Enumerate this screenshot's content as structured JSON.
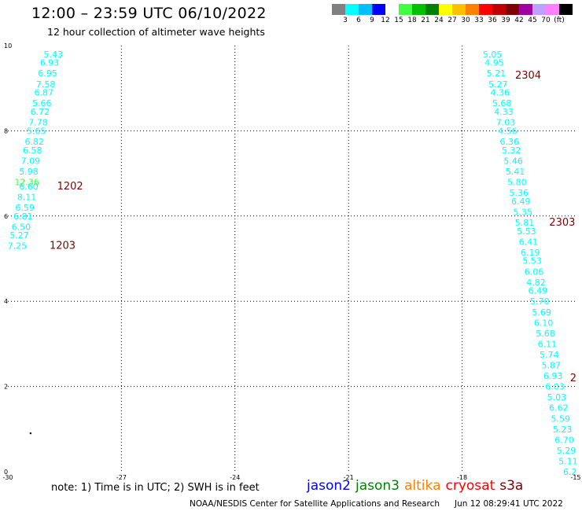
{
  "header": {
    "title": "12:00 – 23:59 UTC 06/10/2022",
    "subtitle": "12 hour collection of altimeter wave heights"
  },
  "legend": {
    "colors": [
      "#808080",
      "#00ffff",
      "#00bfff",
      "#0000ff",
      "#ffffff",
      "#40ff40",
      "#00c000",
      "#008000",
      "#ffff00",
      "#ffc000",
      "#ff8000",
      "#ff0000",
      "#c00000",
      "#800000",
      "#a000a0",
      "#c0a0ff",
      "#ff80ff",
      "#000000"
    ],
    "ticks": [
      "3",
      "6",
      "9",
      "12",
      "15",
      "18",
      "21",
      "24",
      "27",
      "30",
      "33",
      "36",
      "39",
      "42",
      "45",
      "70",
      "(ft)"
    ]
  },
  "axes": {
    "x_ticks": [
      "-30",
      "-27",
      "-24",
      "-21",
      "-18",
      "-15"
    ],
    "y_ticks": [
      "0",
      "2",
      "4",
      "6",
      "8",
      "10"
    ]
  },
  "chart_data": {
    "type": "map",
    "xlim": [
      -30,
      -15
    ],
    "ylim": [
      0,
      10
    ],
    "grid": true,
    "tracks": [
      {
        "points": [
          {
            "lon": -28.8,
            "lat": 9.8,
            "v": "5.43",
            "color": "#00ffff"
          },
          {
            "lon": -28.9,
            "lat": 9.6,
            "v": "6.93",
            "color": "#00ffff"
          },
          {
            "lon": -28.95,
            "lat": 9.35,
            "v": "6.95",
            "color": "#00ffff"
          },
          {
            "lon": -29.0,
            "lat": 9.1,
            "v": "7.58",
            "color": "#00ffff"
          },
          {
            "lon": -29.05,
            "lat": 8.9,
            "v": "6.87",
            "color": "#00ffff"
          },
          {
            "lon": -29.1,
            "lat": 8.65,
            "v": "5.66",
            "color": "#00ffff"
          },
          {
            "lon": -29.15,
            "lat": 8.45,
            "v": "6.72",
            "color": "#00ffff"
          },
          {
            "lon": -29.2,
            "lat": 8.2,
            "v": "7.78",
            "color": "#00ffff"
          },
          {
            "lon": -29.25,
            "lat": 8.0,
            "v": "5.65",
            "color": "#00ffff"
          },
          {
            "lon": -29.3,
            "lat": 7.75,
            "v": "6.82",
            "color": "#00ffff"
          },
          {
            "lon": -29.35,
            "lat": 7.55,
            "v": "6.58",
            "color": "#00ffff"
          },
          {
            "lon": -29.4,
            "lat": 7.3,
            "v": "7.09",
            "color": "#00ffff"
          },
          {
            "lon": -29.45,
            "lat": 7.05,
            "v": "5.98",
            "color": "#00ffff"
          },
          {
            "lon": -29.5,
            "lat": 6.8,
            "v": "12.36",
            "color": "#40ff40"
          },
          {
            "lon": -29.45,
            "lat": 6.7,
            "v": "6.60",
            "color": "#00ffff"
          },
          {
            "lon": -29.5,
            "lat": 6.45,
            "v": "8.11",
            "color": "#00ffff"
          },
          {
            "lon": -29.55,
            "lat": 6.2,
            "v": "6.59",
            "color": "#00ffff"
          },
          {
            "lon": -29.6,
            "lat": 6.0,
            "v": "6.81",
            "color": "#00ffff"
          },
          {
            "lon": -29.65,
            "lat": 5.75,
            "v": "6.50",
            "color": "#00ffff"
          },
          {
            "lon": -29.7,
            "lat": 5.55,
            "v": "5.27",
            "color": "#00ffff"
          },
          {
            "lon": -29.75,
            "lat": 5.3,
            "v": "7.25",
            "color": "#00ffff"
          }
        ]
      },
      {
        "points": [
          {
            "lon": -17.2,
            "lat": 9.8,
            "v": "5.05",
            "color": "#00ffff"
          },
          {
            "lon": -17.15,
            "lat": 9.6,
            "v": "4.95",
            "color": "#00ffff"
          },
          {
            "lon": -17.1,
            "lat": 9.35,
            "v": "5.21",
            "color": "#00ffff"
          },
          {
            "lon": -17.05,
            "lat": 9.1,
            "v": "5.27",
            "color": "#00ffff"
          },
          {
            "lon": -17.0,
            "lat": 8.9,
            "v": "4.36",
            "color": "#00ffff"
          },
          {
            "lon": -16.95,
            "lat": 8.65,
            "v": "5.68",
            "color": "#00ffff"
          },
          {
            "lon": -16.9,
            "lat": 8.45,
            "v": "4.33",
            "color": "#00ffff"
          },
          {
            "lon": -16.85,
            "lat": 8.2,
            "v": "7.03",
            "color": "#00ffff"
          },
          {
            "lon": -16.8,
            "lat": 8.0,
            "v": "4.56",
            "color": "#00ffff"
          },
          {
            "lon": -16.75,
            "lat": 7.75,
            "v": "6.36",
            "color": "#00ffff"
          },
          {
            "lon": -16.7,
            "lat": 7.55,
            "v": "5.32",
            "color": "#00ffff"
          },
          {
            "lon": -16.65,
            "lat": 7.3,
            "v": "5.46",
            "color": "#00ffff"
          },
          {
            "lon": -16.6,
            "lat": 7.05,
            "v": "5.41",
            "color": "#00ffff"
          },
          {
            "lon": -16.55,
            "lat": 6.8,
            "v": "5.80",
            "color": "#00ffff"
          },
          {
            "lon": -16.5,
            "lat": 6.55,
            "v": "5.36",
            "color": "#00ffff"
          },
          {
            "lon": -16.45,
            "lat": 6.35,
            "v": "6.49",
            "color": "#00ffff"
          },
          {
            "lon": -16.4,
            "lat": 6.1,
            "v": "5.35",
            "color": "#00ffff"
          },
          {
            "lon": -16.35,
            "lat": 5.85,
            "v": "5.81",
            "color": "#00ffff"
          },
          {
            "lon": -16.3,
            "lat": 5.65,
            "v": "5.53",
            "color": "#00ffff"
          },
          {
            "lon": -16.25,
            "lat": 5.4,
            "v": "6.41",
            "color": "#00ffff"
          },
          {
            "lon": -16.2,
            "lat": 5.15,
            "v": "6.19",
            "color": "#00ffff"
          },
          {
            "lon": -16.15,
            "lat": 4.95,
            "v": "5.53",
            "color": "#00ffff"
          },
          {
            "lon": -16.1,
            "lat": 4.7,
            "v": "6.06",
            "color": "#00ffff"
          },
          {
            "lon": -16.05,
            "lat": 4.45,
            "v": "4.82",
            "color": "#00ffff"
          },
          {
            "lon": -16.0,
            "lat": 4.25,
            "v": "6.49",
            "color": "#00ffff"
          },
          {
            "lon": -15.95,
            "lat": 4.0,
            "v": "5.70",
            "color": "#00ffff"
          },
          {
            "lon": -15.9,
            "lat": 3.75,
            "v": "5.69",
            "color": "#00ffff"
          },
          {
            "lon": -15.85,
            "lat": 3.5,
            "v": "6.10",
            "color": "#00ffff"
          },
          {
            "lon": -15.8,
            "lat": 3.25,
            "v": "5.68",
            "color": "#00ffff"
          },
          {
            "lon": -15.75,
            "lat": 3.0,
            "v": "6.11",
            "color": "#00ffff"
          },
          {
            "lon": -15.7,
            "lat": 2.75,
            "v": "5.74",
            "color": "#00ffff"
          },
          {
            "lon": -15.65,
            "lat": 2.5,
            "v": "5.87",
            "color": "#00ffff"
          },
          {
            "lon": -15.6,
            "lat": 2.25,
            "v": "6.93",
            "color": "#00ffff"
          },
          {
            "lon": -15.55,
            "lat": 2.0,
            "v": "6.03",
            "color": "#00ffff"
          },
          {
            "lon": -15.5,
            "lat": 1.75,
            "v": "5.03",
            "color": "#00ffff"
          },
          {
            "lon": -15.45,
            "lat": 1.5,
            "v": "6.62",
            "color": "#00ffff"
          },
          {
            "lon": -15.4,
            "lat": 1.25,
            "v": "5.59",
            "color": "#00ffff"
          },
          {
            "lon": -15.35,
            "lat": 1.0,
            "v": "5.23",
            "color": "#00ffff"
          },
          {
            "lon": -15.3,
            "lat": 0.75,
            "v": "6.70",
            "color": "#00ffff"
          },
          {
            "lon": -15.25,
            "lat": 0.5,
            "v": "5.29",
            "color": "#00ffff"
          },
          {
            "lon": -15.2,
            "lat": 0.25,
            "v": "5.11",
            "color": "#00ffff"
          },
          {
            "lon": -15.15,
            "lat": 0.0,
            "v": "6.2",
            "color": "#00ffff"
          }
        ]
      }
    ],
    "time_labels": [
      {
        "lon": -28.7,
        "lat": 6.7,
        "v": "1202"
      },
      {
        "lon": -28.9,
        "lat": 5.3,
        "v": "1203"
      },
      {
        "lon": -16.6,
        "lat": 9.3,
        "v": "2304"
      },
      {
        "lon": -15.7,
        "lat": 5.85,
        "v": "2303"
      },
      {
        "lon": -15.15,
        "lat": 2.2,
        "v": "2"
      }
    ],
    "markers": [
      {
        "lon": -29.4,
        "lat": 0.9
      }
    ]
  },
  "footer": {
    "note": "note:  1) Time is in UTC;  2) SWH is in feet",
    "satellites": [
      {
        "name": "jason2",
        "color": "#0000ff"
      },
      {
        "name": "jason3",
        "color": "#008000"
      },
      {
        "name": "altika",
        "color": "#ff8000"
      },
      {
        "name": "cryosat",
        "color": "#ff0000"
      },
      {
        "name": "s3a",
        "color": "#800000"
      }
    ],
    "credit": "NOAA/NESDIS Center for Satellite Applications and Research",
    "timestamp": "Jun 12 08:29:41 UTC 2022"
  }
}
